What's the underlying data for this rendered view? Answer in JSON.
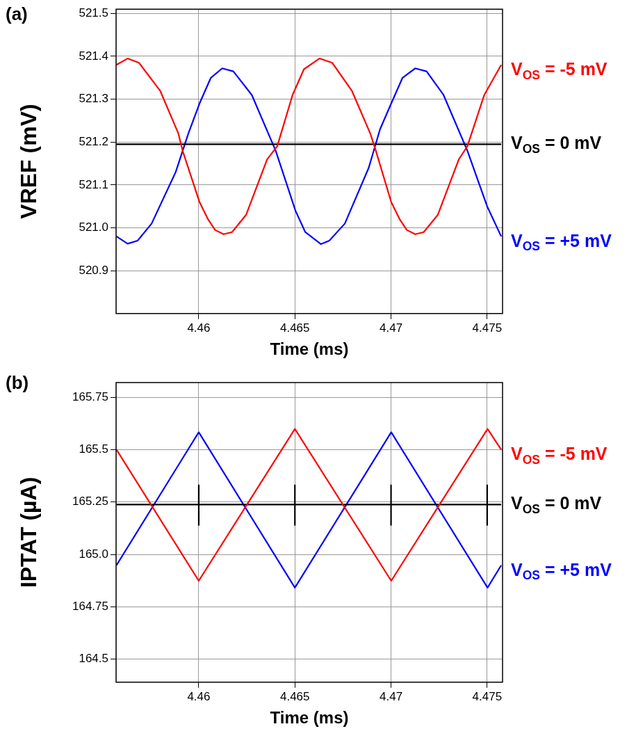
{
  "chart_data": [
    {
      "type": "line",
      "xlabel": "Time (ms)",
      "ylabel": "VREF (mV)",
      "annotations": [
        "(a)"
      ],
      "xlim": [
        4.4557,
        4.4758
      ],
      "ylim": [
        520.8,
        521.51
      ],
      "xticks": [
        4.46,
        4.465,
        4.47,
        4.475
      ],
      "yticks": [
        520.9,
        {
          "value": 521,
          "label": "521.0"
        },
        521.1,
        521.2,
        521.3,
        521.4,
        521.5
      ],
      "grid": true,
      "marker": "none",
      "line_style": "solid",
      "series": [
        {
          "name": "V$_{OS}$ = -5 mV",
          "color": "#ff0000",
          "x": [
            4.45572,
            4.4563,
            4.45689,
            4.45799,
            4.45894,
            4.45916,
            4.46004,
            4.46048,
            4.46085,
            4.46129,
            4.46173,
            4.46246,
            4.46356,
            4.46408,
            4.46488,
            4.46547,
            4.46628,
            4.46694,
            4.46796,
            4.46892,
            4.46921,
            4.47001,
            4.47045,
            4.47082,
            4.47126,
            4.4717,
            4.47243,
            4.47353,
            4.47397,
            4.47485,
            4.47573
          ],
          "values": [
            521.38,
            521.395,
            521.385,
            521.32,
            521.22,
            521.18,
            521.06,
            521.02,
            520.995,
            520.985,
            520.99,
            521.03,
            521.16,
            521.19,
            521.31,
            521.37,
            521.395,
            521.385,
            521.32,
            521.22,
            521.18,
            521.06,
            521.02,
            520.995,
            520.985,
            520.99,
            521.03,
            521.16,
            521.19,
            521.31,
            521.38
          ]
        },
        {
          "name": "V$_{OS}$ = 0 mV",
          "color": "#000000",
          "x": [
            4.45572,
            4.47573
          ],
          "values": [
            521.195,
            521.195
          ]
        },
        {
          "name": "V$_{OS}$ = +5 mV",
          "color": "#0000ff",
          "x": [
            4.45572,
            4.4563,
            4.45682,
            4.45755,
            4.4588,
            4.45946,
            4.46004,
            4.46063,
            4.46122,
            4.4618,
            4.46276,
            4.464,
            4.46503,
            4.46554,
            4.46635,
            4.46679,
            4.4676,
            4.46884,
            4.46943,
            4.47001,
            4.4706,
            4.47126,
            4.47185,
            4.47273,
            4.47397,
            4.475,
            4.47573
          ],
          "values": [
            520.98,
            520.963,
            520.97,
            521.01,
            521.13,
            521.22,
            521.29,
            521.35,
            521.372,
            521.365,
            521.31,
            521.18,
            521.04,
            520.99,
            520.962,
            520.97,
            521.01,
            521.14,
            521.23,
            521.29,
            521.35,
            521.372,
            521.365,
            521.31,
            521.18,
            521.05,
            520.98
          ]
        }
      ]
    },
    {
      "type": "line",
      "xlabel": "Time (ms)",
      "ylabel": "IPTAT (µA)",
      "annotations": [
        "(b)"
      ],
      "xlim": [
        4.4557,
        4.4758
      ],
      "ylim": [
        164.39,
        165.82
      ],
      "xticks": [
        4.46,
        4.465,
        4.47,
        4.475
      ],
      "yticks": [
        164.5,
        164.75,
        {
          "value": 165,
          "label": "165.0"
        },
        165.25,
        165.5,
        165.75
      ],
      "grid": true,
      "marker": "none",
      "line_style": "solid",
      "series": [
        {
          "name": "V$_{OS}$ = -5 mV",
          "color": "#ff0000",
          "x": [
            4.45572,
            4.46,
            4.465,
            4.47001,
            4.47502,
            4.47573
          ],
          "values": [
            165.5,
            164.874,
            165.599,
            164.874,
            165.599,
            165.5
          ]
        },
        {
          "name": "V$_{OS}$ = 0 mV",
          "color": "#000000",
          "x": [
            4.45572,
            4.46,
            4.46,
            4.46,
            4.46,
            4.465,
            4.465,
            4.465,
            4.465,
            4.47,
            4.47,
            4.47,
            4.47,
            4.475,
            4.475,
            4.475,
            4.475,
            4.47573
          ],
          "values": [
            165.238,
            165.238,
            165.33,
            165.14,
            165.238,
            165.238,
            165.33,
            165.14,
            165.238,
            165.238,
            165.33,
            165.14,
            165.238,
            165.238,
            165.33,
            165.14,
            165.238,
            165.238
          ]
        },
        {
          "name": "V$_{OS}$ = +5 mV",
          "color": "#0000ff",
          "x": [
            4.45572,
            4.46,
            4.465,
            4.47001,
            4.47502,
            4.47573
          ],
          "values": [
            164.948,
            165.583,
            164.841,
            165.583,
            164.841,
            164.948
          ]
        }
      ]
    }
  ]
}
